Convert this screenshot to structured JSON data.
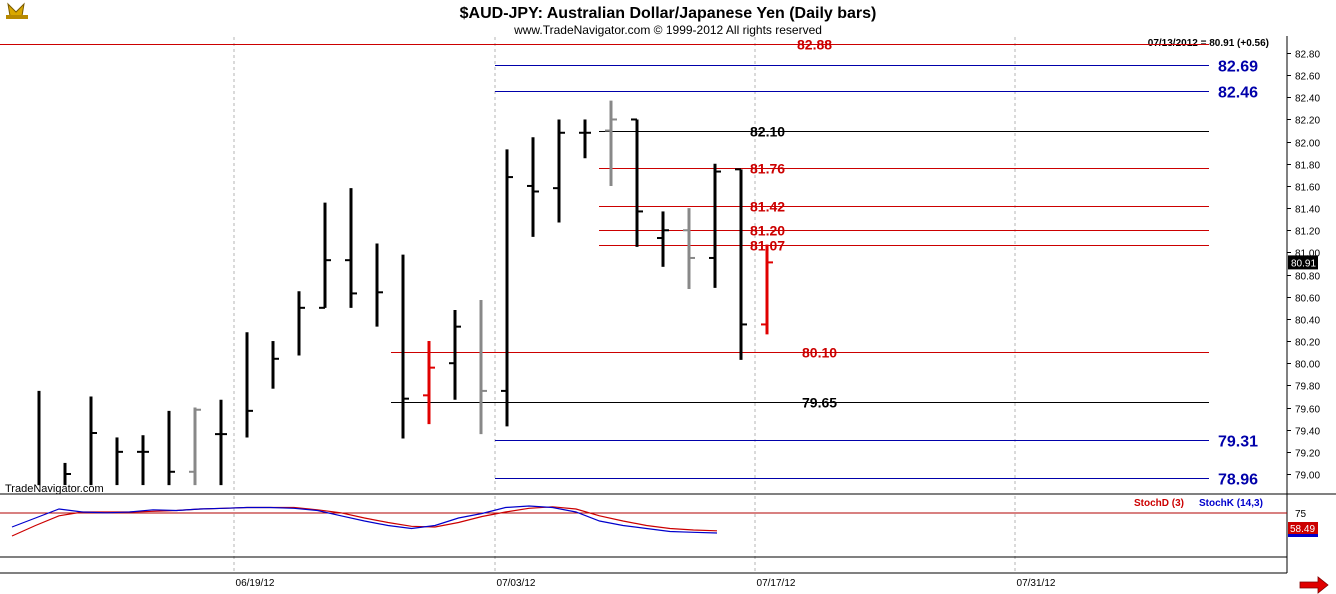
{
  "header": {
    "title": "$AUD-JPY:  Australian Dollar/Japanese Yen  (Daily bars)",
    "copyright": "www.TradeNavigator.com © 1999-2012 All rights reserved",
    "last_quote": "07/13/2012 = 80.91 (+0.56)",
    "watermark": "TradeNavigator.com"
  },
  "colors": {
    "up_bar": "#000000",
    "down_bar": "#888888",
    "current_bar": "#e00000",
    "red_level": "#cc0000",
    "blue_level": "#0000aa",
    "black_level": "#000000",
    "stoch_d": "#cc0000",
    "stoch_k": "#0000cc"
  },
  "chart_data": {
    "type": "ohlc",
    "price_axis": {
      "min": 78.9,
      "max": 82.9,
      "ticks": [
        "82.80",
        "82.60",
        "82.40",
        "82.20",
        "82.00",
        "81.80",
        "81.60",
        "81.40",
        "81.20",
        "81.00",
        "80.80",
        "80.60",
        "80.40",
        "80.20",
        "80.00",
        "79.80",
        "79.60",
        "79.40",
        "79.20",
        "79.00"
      ]
    },
    "last_price_label": "80.91",
    "date_labels": [
      "06/19/12",
      "07/03/12",
      "07/17/12",
      "07/31/12"
    ],
    "bars": [
      {
        "o": null,
        "h": 79.75,
        "l": 78.9,
        "c": null,
        "col": "black"
      },
      {
        "o": null,
        "h": 79.1,
        "l": 78.9,
        "c": 79.0,
        "col": "black"
      },
      {
        "o": null,
        "h": 79.7,
        "l": 78.9,
        "c": 79.37,
        "col": "black"
      },
      {
        "o": null,
        "h": 79.33,
        "l": 78.9,
        "c": 79.2,
        "col": "black"
      },
      {
        "o": 79.2,
        "h": 79.35,
        "l": 78.9,
        "c": 79.2,
        "col": "black"
      },
      {
        "o": null,
        "h": 79.57,
        "l": 78.9,
        "c": 79.02,
        "col": "black"
      },
      {
        "o": 79.02,
        "h": 79.6,
        "l": 78.9,
        "c": 79.58,
        "col": "gray"
      },
      {
        "o": 79.36,
        "h": 79.67,
        "l": 78.9,
        "c": 79.36,
        "col": "black"
      },
      {
        "o": null,
        "h": 80.28,
        "l": 79.33,
        "c": 79.57,
        "col": "black"
      },
      {
        "o": null,
        "h": 80.2,
        "l": 79.77,
        "c": 80.04,
        "col": "black"
      },
      {
        "o": null,
        "h": 80.65,
        "l": 80.07,
        "c": 80.5,
        "col": "black"
      },
      {
        "o": 80.5,
        "h": 81.45,
        "l": 80.5,
        "c": 80.93,
        "col": "black"
      },
      {
        "o": 80.93,
        "h": 81.58,
        "l": 80.5,
        "c": 80.63,
        "col": "black"
      },
      {
        "o": null,
        "h": 81.08,
        "l": 80.33,
        "c": 80.64,
        "col": "black"
      },
      {
        "o": null,
        "h": 80.98,
        "l": 79.32,
        "c": 79.68,
        "col": "black"
      },
      {
        "o": 79.71,
        "h": 80.2,
        "l": 79.45,
        "c": 79.96,
        "col": "red"
      },
      {
        "o": 80.0,
        "h": 80.48,
        "l": 79.67,
        "c": 80.33,
        "col": "black"
      },
      {
        "o": null,
        "h": 80.57,
        "l": 79.36,
        "c": 79.75,
        "col": "gray"
      },
      {
        "o": 79.75,
        "h": 81.93,
        "l": 79.43,
        "c": 81.68,
        "col": "black"
      },
      {
        "o": 81.6,
        "h": 82.04,
        "l": 81.14,
        "c": 81.55,
        "col": "black"
      },
      {
        "o": 81.58,
        "h": 82.2,
        "l": 81.27,
        "c": 82.08,
        "col": "black"
      },
      {
        "o": 82.08,
        "h": 82.2,
        "l": 81.85,
        "c": 82.08,
        "col": "black"
      },
      {
        "o": 82.1,
        "h": 82.37,
        "l": 81.6,
        "c": 82.2,
        "col": "gray"
      },
      {
        "o": 82.2,
        "h": 82.2,
        "l": 81.05,
        "c": 81.37,
        "col": "black"
      },
      {
        "o": 81.13,
        "h": 81.37,
        "l": 80.87,
        "c": 81.2,
        "col": "black"
      },
      {
        "o": 81.2,
        "h": 81.4,
        "l": 80.67,
        "c": 80.95,
        "col": "gray"
      },
      {
        "o": 80.95,
        "h": 81.8,
        "l": 80.68,
        "c": 81.73,
        "col": "black"
      },
      {
        "o": 81.75,
        "h": 81.75,
        "l": 80.03,
        "c": 80.35,
        "col": "black"
      },
      {
        "o": 80.35,
        "h": 81.07,
        "l": 80.26,
        "c": 80.91,
        "col": "red"
      }
    ],
    "levels": [
      {
        "value": 82.88,
        "label": "82.88",
        "color": "red",
        "from_bar": 0,
        "label_style": "red"
      },
      {
        "value": 82.69,
        "label": "82.69",
        "color": "blue",
        "from_bar": 18,
        "label_style": "blue"
      },
      {
        "value": 82.46,
        "label": "82.46",
        "color": "blue",
        "from_bar": 18,
        "label_style": "blue"
      },
      {
        "value": 82.1,
        "label": "82.10",
        "color": "black",
        "from_bar": 22,
        "label_style": "black"
      },
      {
        "value": 81.76,
        "label": "81.76",
        "color": "red",
        "from_bar": 22,
        "label_style": "red"
      },
      {
        "value": 81.42,
        "label": "81.42",
        "color": "red",
        "from_bar": 22,
        "label_style": "red"
      },
      {
        "value": 81.2,
        "label": "81.20",
        "color": "red",
        "from_bar": 22,
        "label_style": "red"
      },
      {
        "value": 81.07,
        "label": "81.07",
        "color": "red",
        "from_bar": 22,
        "label_style": "red"
      },
      {
        "value": 80.1,
        "label": "80.10",
        "color": "red",
        "from_bar": 14,
        "label_style": "red"
      },
      {
        "value": 79.65,
        "label": "79.65",
        "color": "black",
        "from_bar": 14,
        "label_style": "black"
      },
      {
        "value": 79.31,
        "label": "79.31",
        "color": "blue",
        "from_bar": 18,
        "label_style": "blue"
      },
      {
        "value": 78.96,
        "label": "78.96",
        "color": "blue",
        "from_bar": 18,
        "label_style": "blue"
      }
    ],
    "stochastic": {
      "d_label": "StochD (3)",
      "k_label": "StochK (14,3)",
      "axis_label": "75",
      "last_value": "58.49",
      "min": 0,
      "max": 100,
      "k": [
        60,
        72,
        84,
        80,
        79,
        80,
        83,
        82,
        84,
        85,
        86,
        86,
        85,
        82,
        75,
        68,
        62,
        58,
        62,
        72,
        78,
        86,
        88,
        86,
        80,
        68,
        62,
        58,
        54,
        53,
        52
      ],
      "d": [
        48,
        62,
        75,
        80,
        80,
        80,
        81,
        82,
        84,
        85,
        86,
        86,
        86,
        83,
        79,
        72,
        66,
        61,
        60,
        66,
        74,
        80,
        85,
        87,
        84,
        75,
        68,
        62,
        58,
        56,
        55
      ]
    }
  }
}
